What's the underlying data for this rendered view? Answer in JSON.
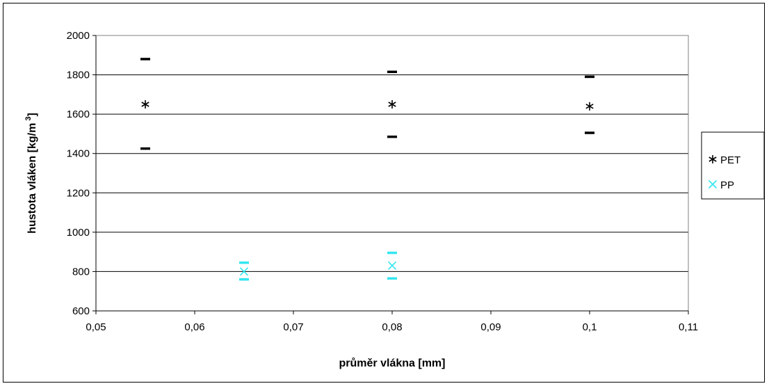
{
  "chart_data": {
    "type": "scatter",
    "title": "",
    "xlabel": "průměr vlákna  [mm]",
    "ylabel": "hustota vláken  [kg/m",
    "ylabel_superscript": "3",
    "ylabel_suffix": "]",
    "xlim": [
      0.05,
      0.11
    ],
    "ylim": [
      600,
      2000
    ],
    "x_ticks": [
      0.05,
      0.06,
      0.07,
      0.08,
      0.09,
      0.1,
      0.11
    ],
    "x_tick_labels": [
      "0,05",
      "0,06",
      "0,07",
      "0,08",
      "0,09",
      "0,1",
      "0,11"
    ],
    "y_ticks": [
      600,
      800,
      1000,
      1200,
      1400,
      1600,
      1800,
      2000
    ],
    "y_tick_labels": [
      "600",
      "800",
      "1000",
      "1200",
      "1400",
      "1600",
      "1800",
      "2000"
    ],
    "grid": "horizontal",
    "legend_position": "right",
    "series": [
      {
        "name": "PET",
        "color": "#000000",
        "marker": "asterisk",
        "points": [
          {
            "x": 0.055,
            "y": 1650,
            "upper": 1880,
            "lower": 1425
          },
          {
            "x": 0.08,
            "y": 1650,
            "upper": 1815,
            "lower": 1485
          },
          {
            "x": 0.1,
            "y": 1640,
            "upper": 1790,
            "lower": 1505
          }
        ]
      },
      {
        "name": "PP",
        "color": "#33e6f0",
        "marker": "x",
        "points": [
          {
            "x": 0.065,
            "y": 800,
            "upper": 845,
            "lower": 760
          },
          {
            "x": 0.08,
            "y": 830,
            "upper": 895,
            "lower": 765
          }
        ]
      }
    ]
  }
}
